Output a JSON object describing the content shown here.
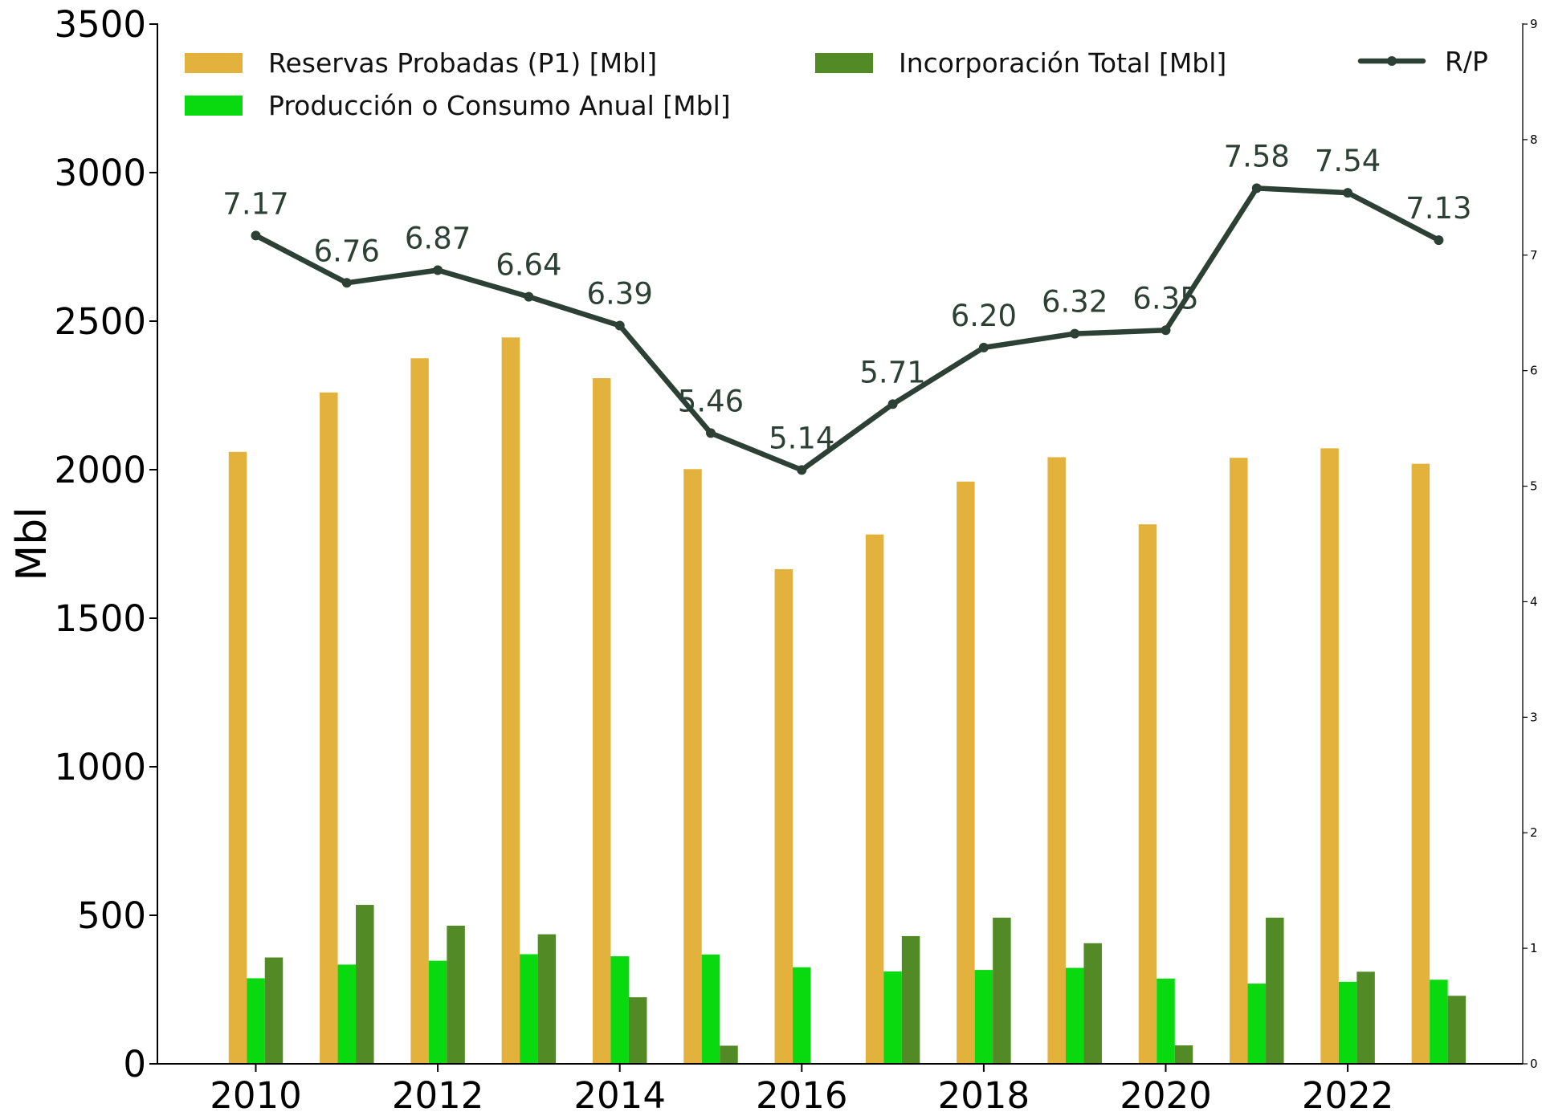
{
  "chart_data": {
    "type": "bar",
    "categories": [
      2010,
      2011,
      2012,
      2013,
      2014,
      2015,
      2016,
      2017,
      2018,
      2019,
      2020,
      2021,
      2022,
      2023
    ],
    "x_tick_labels": [
      "2010",
      "2012",
      "2014",
      "2016",
      "2018",
      "2020",
      "2022"
    ],
    "ylabel": "Mbl",
    "ylim": [
      0,
      3500
    ],
    "y_ticks": [
      "0",
      "500",
      "1000",
      "1500",
      "2000",
      "2500",
      "3000",
      "3500"
    ],
    "y2lim": [
      0,
      9
    ],
    "y2_ticks": [
      "0",
      "1",
      "2",
      "3",
      "4",
      "5",
      "6",
      "7",
      "8",
      "9"
    ],
    "series": [
      {
        "name": "Reservas Probadas (P1) [Mbl]",
        "kind": "bar",
        "axis": "left",
        "color": "#e3b23c",
        "values": [
          2060,
          2260,
          2375,
          2445,
          2308,
          2002,
          1665,
          1782,
          1960,
          2042,
          1816,
          2040,
          2072,
          2020
        ]
      },
      {
        "name": "Producción o Consumo Anual [Mbl]",
        "kind": "bar",
        "axis": "left",
        "color": "#09d90f",
        "values": [
          288,
          334,
          347,
          369,
          362,
          368,
          325,
          311,
          316,
          323,
          287,
          270,
          276,
          283
        ]
      },
      {
        "name": "Incorporación Total [Mbl]",
        "kind": "bar",
        "axis": "left",
        "color": "#528a26",
        "values": [
          358,
          535,
          465,
          436,
          224,
          61,
          0,
          430,
          492,
          406,
          62,
          492,
          310,
          229
        ]
      },
      {
        "name": "R/P",
        "kind": "line",
        "axis": "right",
        "color": "#2d4036",
        "values": [
          7.17,
          6.76,
          6.87,
          6.64,
          6.39,
          5.46,
          5.14,
          5.71,
          6.2,
          6.32,
          6.35,
          7.58,
          7.54,
          7.13
        ],
        "labels": [
          "7.17",
          "6.76",
          "6.87",
          "6.64",
          "6.39",
          "5.46",
          "5.14",
          "5.71",
          "6.20",
          "6.32",
          "6.35",
          "7.58",
          "7.54",
          "7.13"
        ]
      }
    ],
    "legend": "top",
    "grid": false
  }
}
